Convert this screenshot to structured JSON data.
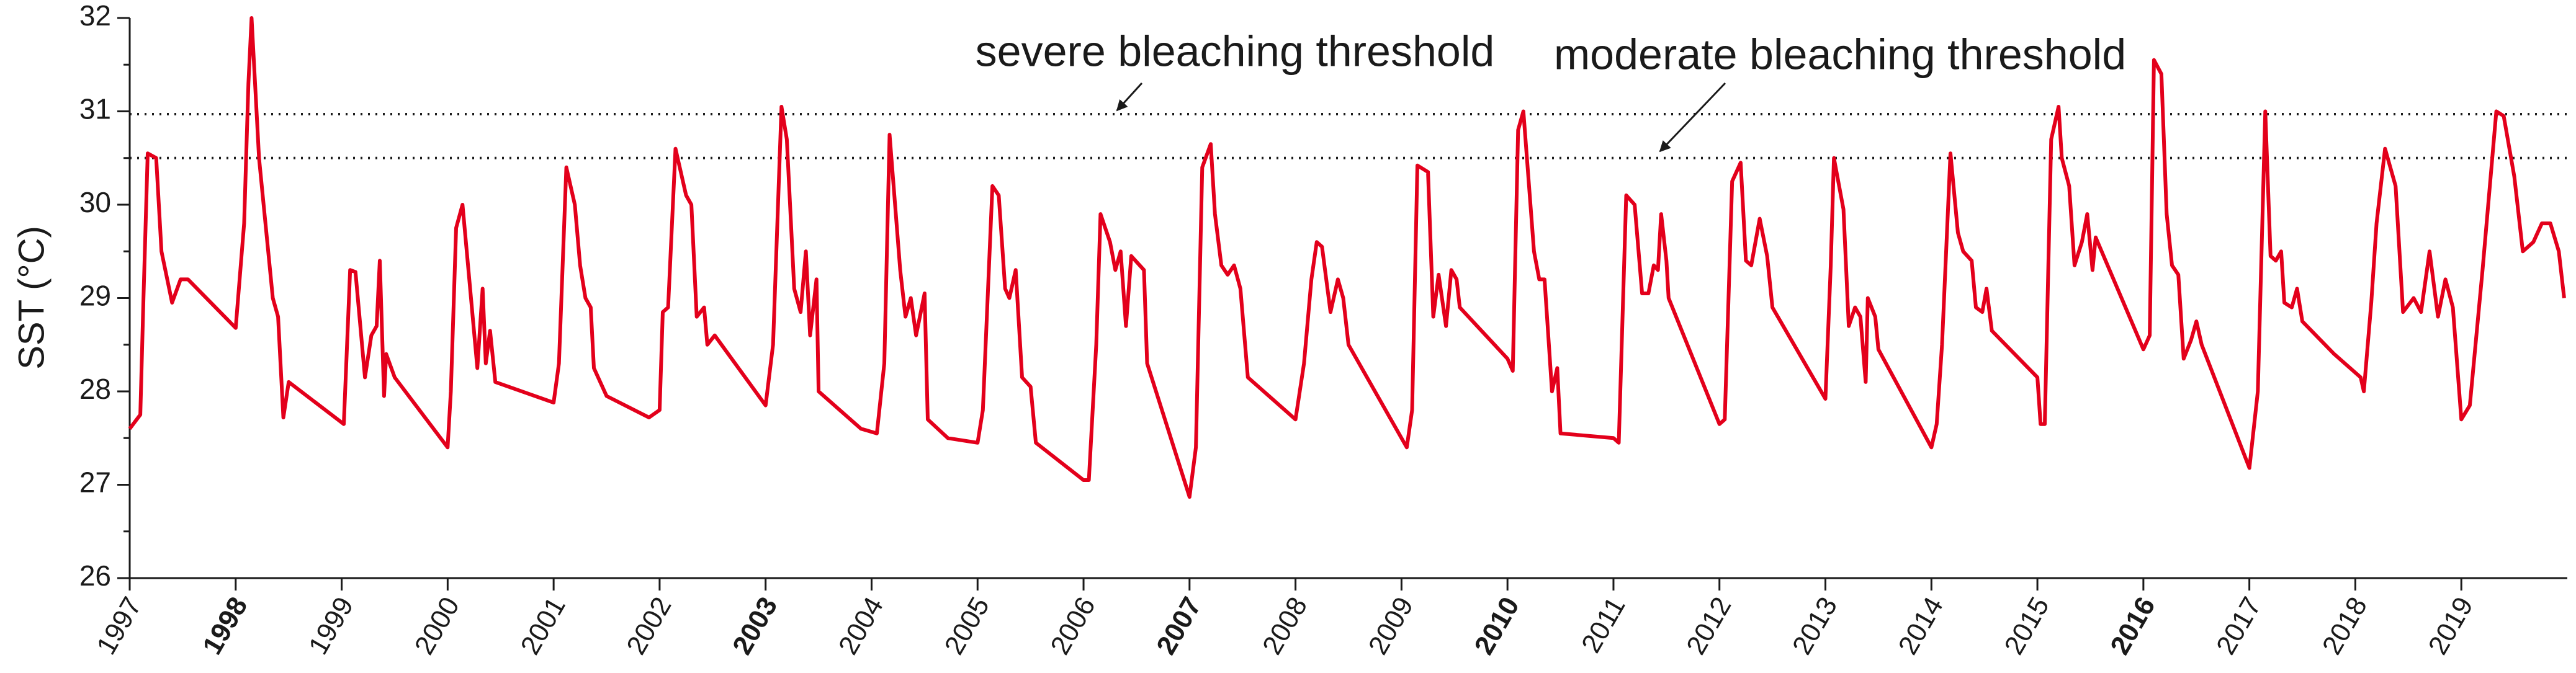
{
  "chart_data": {
    "type": "line",
    "y_label": "SST (°C)",
    "color": "#e3001b",
    "xlim": [
      1997,
      2020
    ],
    "xticks": [
      1997,
      1998,
      1999,
      2000,
      2001,
      2002,
      2003,
      2004,
      2005,
      2006,
      2007,
      2008,
      2009,
      2010,
      2011,
      2012,
      2013,
      2014,
      2015,
      2016,
      2017,
      2018,
      2019
    ],
    "bold_xticks": [
      1998,
      2003,
      2007,
      2010,
      2016
    ],
    "ylim": [
      26,
      32
    ],
    "yticks": [
      26,
      27,
      28,
      29,
      30,
      31,
      32
    ],
    "reference_lines": [
      {
        "name": "severe bleaching threshold",
        "value": 30.97
      },
      {
        "name": "moderate bleaching threshold",
        "value": 30.5
      }
    ],
    "x": [
      1997.0,
      1997.1,
      1997.13,
      1997.17,
      1997.25,
      1997.3,
      1997.4,
      1997.48,
      1997.55,
      1998.0,
      1998.08,
      1998.12,
      1998.15,
      1998.22,
      1998.35,
      1998.4,
      1998.45,
      1998.5,
      1999.02,
      1999.08,
      1999.13,
      1999.22,
      1999.28,
      1999.33,
      1999.36,
      1999.4,
      1999.42,
      1999.5,
      2000.0,
      2000.03,
      2000.08,
      2000.14,
      2000.28,
      2000.33,
      2000.36,
      2000.4,
      2000.45,
      2001.0,
      2001.05,
      2001.12,
      2001.2,
      2001.25,
      2001.3,
      2001.35,
      2001.38,
      2001.5,
      2001.9,
      2002.0,
      2002.03,
      2002.08,
      2002.15,
      2002.25,
      2002.3,
      2002.35,
      2002.42,
      2002.45,
      2002.52,
      2003.0,
      2003.07,
      2003.15,
      2003.2,
      2003.27,
      2003.33,
      2003.38,
      2003.42,
      2003.48,
      2003.5,
      2003.9,
      2004.05,
      2004.12,
      2004.17,
      2004.27,
      2004.32,
      2004.37,
      2004.42,
      2004.5,
      2004.53,
      2004.72,
      2005.0,
      2005.05,
      2005.14,
      2005.2,
      2005.26,
      2005.3,
      2005.36,
      2005.42,
      2005.5,
      2005.55,
      2006.0,
      2006.05,
      2006.12,
      2006.16,
      2006.25,
      2006.3,
      2006.35,
      2006.4,
      2006.45,
      2006.57,
      2006.6,
      2007.0,
      2007.06,
      2007.12,
      2007.2,
      2007.24,
      2007.3,
      2007.36,
      2007.42,
      2007.48,
      2007.55,
      2008.0,
      2008.08,
      2008.15,
      2008.2,
      2008.25,
      2008.33,
      2008.4,
      2008.45,
      2008.5,
      2009.05,
      2009.1,
      2009.15,
      2009.25,
      2009.3,
      2009.35,
      2009.42,
      2009.47,
      2009.52,
      2009.55,
      2010.0,
      2010.05,
      2010.1,
      2010.15,
      2010.25,
      2010.3,
      2010.35,
      2010.42,
      2010.47,
      2010.5,
      2011.0,
      2011.05,
      2011.12,
      2011.2,
      2011.27,
      2011.33,
      2011.38,
      2011.42,
      2011.45,
      2011.5,
      2011.52,
      2012.0,
      2012.05,
      2012.12,
      2012.2,
      2012.25,
      2012.3,
      2012.38,
      2012.45,
      2012.5,
      2013.0,
      2013.05,
      2013.08,
      2013.17,
      2013.22,
      2013.28,
      2013.33,
      2013.38,
      2013.4,
      2013.47,
      2013.5,
      2014.0,
      2014.05,
      2014.1,
      2014.18,
      2014.25,
      2014.3,
      2014.38,
      2014.42,
      2014.48,
      2014.52,
      2014.57,
      2015.0,
      2015.03,
      2015.07,
      2015.13,
      2015.2,
      2015.23,
      2015.3,
      2015.35,
      2015.42,
      2015.47,
      2015.52,
      2015.55,
      2016.0,
      2016.06,
      2016.1,
      2016.17,
      2016.22,
      2016.27,
      2016.33,
      2016.38,
      2016.45,
      2016.5,
      2016.55,
      2017.0,
      2017.08,
      2017.15,
      2017.2,
      2017.25,
      2017.3,
      2017.33,
      2017.4,
      2017.45,
      2017.5,
      2017.8,
      2018.05,
      2018.08,
      2018.15,
      2018.2,
      2018.28,
      2018.38,
      2018.45,
      2018.55,
      2018.62,
      2018.7,
      2018.78,
      2018.85,
      2018.92,
      2019.0,
      2019.08,
      2019.2,
      2019.33,
      2019.4,
      2019.5,
      2019.58,
      2019.68,
      2019.76,
      2019.84,
      2019.92,
      2019.97
    ],
    "values": [
      27.6,
      27.75,
      29.0,
      30.55,
      30.5,
      29.5,
      28.95,
      29.2,
      29.2,
      28.68,
      29.8,
      31.3,
      32.0,
      30.5,
      29.0,
      28.8,
      27.72,
      28.1,
      27.65,
      29.3,
      29.28,
      28.15,
      28.6,
      28.7,
      29.4,
      27.95,
      28.4,
      28.15,
      27.4,
      28.0,
      29.75,
      30.0,
      28.25,
      29.1,
      28.3,
      28.65,
      28.1,
      27.88,
      28.3,
      30.4,
      30.0,
      29.35,
      29.0,
      28.9,
      28.25,
      27.95,
      27.72,
      27.8,
      28.85,
      28.9,
      30.6,
      30.1,
      30.0,
      28.8,
      28.9,
      28.5,
      28.6,
      27.85,
      28.5,
      31.05,
      30.7,
      29.1,
      28.85,
      29.5,
      28.6,
      29.2,
      28.0,
      27.6,
      27.55,
      28.3,
      30.75,
      29.3,
      28.8,
      29.0,
      28.6,
      29.05,
      27.7,
      27.5,
      27.45,
      27.8,
      30.2,
      30.1,
      29.1,
      29.0,
      29.3,
      28.15,
      28.05,
      27.45,
      27.05,
      27.05,
      28.5,
      29.9,
      29.6,
      29.3,
      29.5,
      28.7,
      29.45,
      29.3,
      28.3,
      26.87,
      27.4,
      30.4,
      30.65,
      29.9,
      29.35,
      29.25,
      29.35,
      29.1,
      28.15,
      27.7,
      28.3,
      29.2,
      29.6,
      29.55,
      28.85,
      29.2,
      29.0,
      28.5,
      27.4,
      27.8,
      30.42,
      30.35,
      28.8,
      29.25,
      28.7,
      29.3,
      29.2,
      28.9,
      28.35,
      28.22,
      30.8,
      31.0,
      29.5,
      29.2,
      29.2,
      28.0,
      28.25,
      27.55,
      27.5,
      27.45,
      30.1,
      30.0,
      29.05,
      29.05,
      29.35,
      29.3,
      29.9,
      29.4,
      29.0,
      27.65,
      27.7,
      30.25,
      30.45,
      29.4,
      29.35,
      29.85,
      29.45,
      28.9,
      27.92,
      29.35,
      30.5,
      29.95,
      28.7,
      28.9,
      28.8,
      28.1,
      29.0,
      28.8,
      28.45,
      27.4,
      27.65,
      28.5,
      30.55,
      29.7,
      29.5,
      29.4,
      28.9,
      28.85,
      29.1,
      28.65,
      28.15,
      27.65,
      27.65,
      30.7,
      31.05,
      30.5,
      30.2,
      29.35,
      29.6,
      29.9,
      29.3,
      29.65,
      28.45,
      28.6,
      31.55,
      31.4,
      29.9,
      29.35,
      29.25,
      28.35,
      28.55,
      28.75,
      28.5,
      27.18,
      28.0,
      31.0,
      29.45,
      29.4,
      29.5,
      28.95,
      28.9,
      29.1,
      28.75,
      28.4,
      28.15,
      28.0,
      28.95,
      29.8,
      30.6,
      30.2,
      28.85,
      29.0,
      28.85,
      29.5,
      28.8,
      29.2,
      28.9,
      27.7,
      27.85,
      29.3,
      31.0,
      30.95,
      30.3,
      29.5,
      29.6,
      29.8,
      29.8,
      29.5,
      29.0
    ]
  }
}
